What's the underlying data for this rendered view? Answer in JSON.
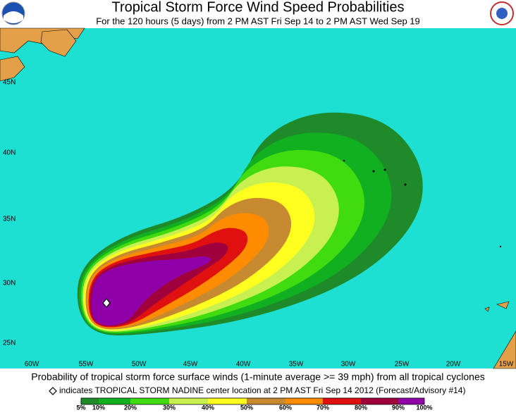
{
  "header": {
    "title": "Tropical Storm Force Wind Speed Probabilities",
    "subtitle": "For the 120 hours (5 days) from 2 PM AST Fri Sep 14 to 2 PM AST Wed Sep 19"
  },
  "map": {
    "lat_labels": [
      "45N",
      "40N",
      "35N",
      "30N",
      "25N"
    ],
    "lon_labels": [
      "60W",
      "55W",
      "50W",
      "45W",
      "40W",
      "35W",
      "30W",
      "25W",
      "20W",
      "15W"
    ]
  },
  "caption": "Probability of tropical storm force surface winds (1-minute average >= 39 mph) from all tropical cyclones",
  "note": "indicates TROPICAL STORM NADINE center location at 2 PM AST Fri Sep 14 2012 (Forecast/Advisory #14)",
  "legend": {
    "labels": [
      "5%",
      "10%",
      "20%",
      "30%",
      "40%",
      "50%",
      "60%",
      "70%",
      "80%",
      "90%",
      "100%"
    ],
    "colors": [
      "#1f8a2a",
      "#10b020",
      "#40dc10",
      "#c8f050",
      "#ffff20",
      "#c88a30",
      "#ff8c00",
      "#e01010",
      "#a0003c",
      "#9000a8"
    ]
  }
}
